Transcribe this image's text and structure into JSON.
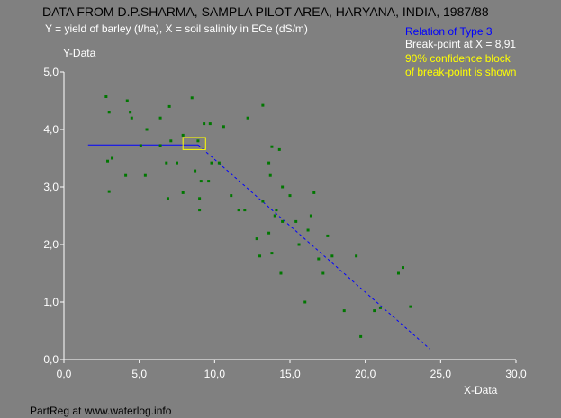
{
  "header": {
    "title": "DATA FROM D.P.SHARMA, SAMPLA PILOT AREA, HARYANA, INDIA, 1987/88",
    "subtitle": "Y = yield of barley (t/ha), X = soil salinity in ECe (dS/m)"
  },
  "info": {
    "relation": "Relation of Type 3",
    "breakpoint": "Break-point at X =  8,91",
    "confidence_line1": "90% confidence block",
    "confidence_line2": "of break-point is shown"
  },
  "footer": {
    "text": "PartReg at www.waterlog.info"
  },
  "colors": {
    "background": "#808080",
    "points": "#007700",
    "fit_line": "#0000ff",
    "confidence_box": "#ffff00",
    "relation_text": "#0000ff",
    "confidence_text": "#ffff00"
  },
  "chart_data": {
    "type": "scatter",
    "xlabel": "X-Data",
    "ylabel": "Y-Data",
    "xlim": [
      0,
      30
    ],
    "ylim": [
      0,
      5
    ],
    "x_ticks": [
      "0,0",
      "5,0",
      "10,0",
      "15,0",
      "20,0",
      "25,0",
      "30,0"
    ],
    "y_ticks": [
      "0,0",
      "1,0",
      "2,0",
      "3,0",
      "4,0",
      "5,0"
    ],
    "grid": false,
    "points": [
      [
        2.8,
        4.57
      ],
      [
        3.0,
        4.3
      ],
      [
        2.9,
        3.45
      ],
      [
        3.2,
        3.5
      ],
      [
        3.0,
        2.92
      ],
      [
        4.2,
        4.5
      ],
      [
        4.4,
        4.3
      ],
      [
        4.5,
        4.2
      ],
      [
        4.1,
        3.2
      ],
      [
        5.1,
        3.72
      ],
      [
        5.5,
        4.0
      ],
      [
        5.4,
        3.2
      ],
      [
        6.4,
        4.2
      ],
      [
        6.4,
        3.72
      ],
      [
        7.0,
        4.4
      ],
      [
        6.8,
        3.42
      ],
      [
        6.9,
        2.8
      ],
      [
        7.1,
        3.8
      ],
      [
        7.5,
        3.42
      ],
      [
        7.9,
        3.9
      ],
      [
        7.9,
        2.9
      ],
      [
        8.5,
        4.55
      ],
      [
        8.7,
        3.28
      ],
      [
        8.9,
        3.8
      ],
      [
        9.0,
        2.8
      ],
      [
        9.0,
        2.6
      ],
      [
        9.3,
        4.1
      ],
      [
        9.7,
        4.1
      ],
      [
        9.6,
        3.1
      ],
      [
        9.1,
        3.1
      ],
      [
        9.8,
        3.42
      ],
      [
        10.3,
        3.42
      ],
      [
        10.6,
        4.05
      ],
      [
        11.1,
        2.85
      ],
      [
        11.6,
        2.6
      ],
      [
        12.0,
        2.6
      ],
      [
        12.2,
        4.2
      ],
      [
        12.8,
        2.1
      ],
      [
        13.0,
        1.8
      ],
      [
        13.2,
        4.42
      ],
      [
        13.2,
        2.75
      ],
      [
        13.6,
        3.42
      ],
      [
        13.8,
        3.7
      ],
      [
        13.7,
        3.2
      ],
      [
        13.6,
        2.2
      ],
      [
        13.8,
        1.85
      ],
      [
        14.0,
        2.5
      ],
      [
        14.1,
        2.6
      ],
      [
        14.3,
        3.65
      ],
      [
        14.5,
        3.0
      ],
      [
        14.5,
        2.4
      ],
      [
        14.4,
        1.5
      ],
      [
        15.0,
        2.85
      ],
      [
        15.4,
        2.4
      ],
      [
        15.6,
        2.0
      ],
      [
        16.0,
        1.0
      ],
      [
        16.2,
        2.25
      ],
      [
        16.4,
        2.5
      ],
      [
        16.6,
        2.9
      ],
      [
        16.9,
        1.75
      ],
      [
        17.2,
        1.5
      ],
      [
        17.5,
        2.15
      ],
      [
        17.8,
        1.8
      ],
      [
        18.6,
        0.85
      ],
      [
        19.4,
        1.8
      ],
      [
        19.7,
        0.4
      ],
      [
        20.6,
        0.85
      ],
      [
        21.0,
        0.9
      ],
      [
        22.2,
        1.5
      ],
      [
        22.5,
        1.6
      ],
      [
        23.0,
        0.92
      ]
    ],
    "fit": {
      "breakpoint_x": 8.91,
      "segments": [
        {
          "style": "solid",
          "x": [
            1.6,
            8.91
          ],
          "y": [
            3.73,
            3.73
          ]
        },
        {
          "style": "dashed",
          "x": [
            8.91,
            24.3
          ],
          "y": [
            3.73,
            0.18
          ]
        }
      ],
      "confidence_block": {
        "x": [
          7.9,
          9.4
        ],
        "y": [
          3.65,
          3.86
        ]
      }
    }
  }
}
